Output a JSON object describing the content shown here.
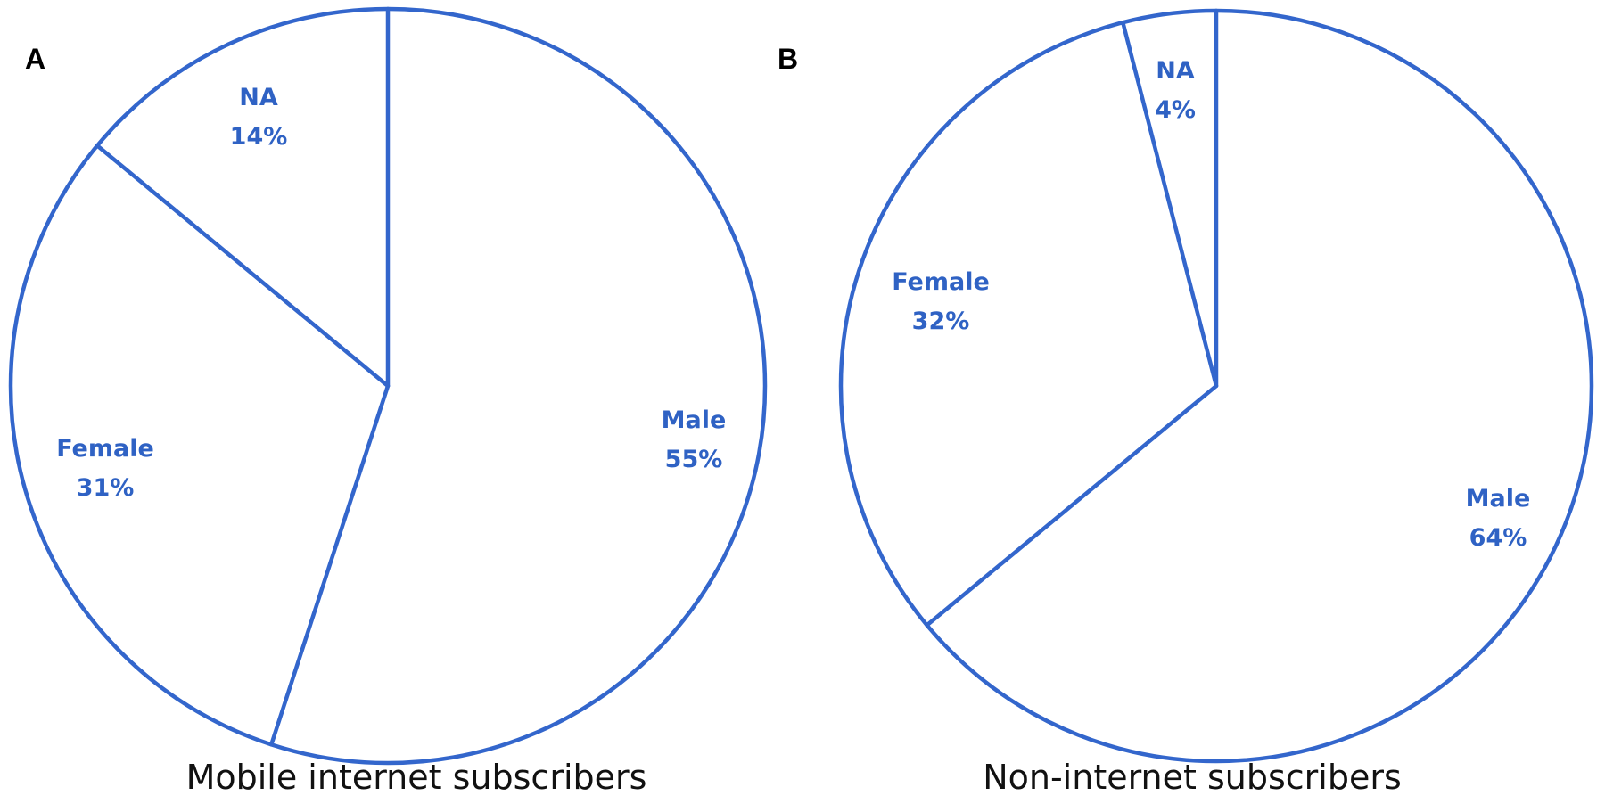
{
  "colors": {
    "stroke": "#3366cc",
    "label": "#2f62c4",
    "background": "#ffffff"
  },
  "panels": [
    {
      "letter": "A",
      "caption": "Mobile internet subscribers"
    },
    {
      "letter": "B",
      "caption": "Non-internet subscribers"
    }
  ],
  "chart_data": [
    {
      "type": "pie",
      "panel": "A",
      "title": "Mobile internet subscribers",
      "categories": [
        "Male",
        "Female",
        "NA"
      ],
      "values": [
        55,
        31,
        14
      ],
      "labels": [
        "Male 55%",
        "Female 31%",
        "NA 14%"
      ],
      "start_angle": "12 o'clock, clockwise",
      "fill": "none (white), blue outlines"
    },
    {
      "type": "pie",
      "panel": "B",
      "title": "Non-internet subscribers",
      "categories": [
        "Male",
        "Female",
        "NA"
      ],
      "values": [
        64,
        32,
        4
      ],
      "labels": [
        "Male 64%",
        "Female 32%",
        "NA 4%"
      ],
      "start_angle": "12 o'clock, clockwise",
      "fill": "none (white), blue outlines"
    }
  ]
}
